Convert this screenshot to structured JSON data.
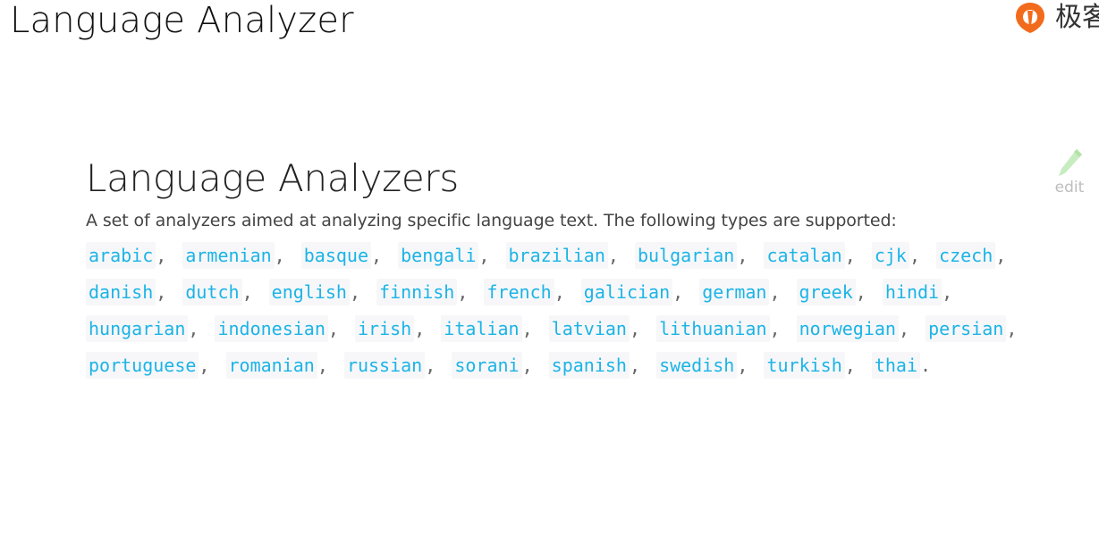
{
  "slide": {
    "title": "Language Analyzer"
  },
  "brand": {
    "logo_icon": "geekbang-logo-icon",
    "text": "极客",
    "accent": "#f26b1d"
  },
  "doc": {
    "heading": "Language Analyzers",
    "description": "A set of analyzers aimed at analyzing specific language text. The following types are supported:",
    "languages": [
      "arabic",
      "armenian",
      "basque",
      "bengali",
      "brazilian",
      "bulgarian",
      "catalan",
      "cjk",
      "czech",
      "danish",
      "dutch",
      "english",
      "finnish",
      "french",
      "galician",
      "german",
      "greek",
      "hindi",
      "hungarian",
      "indonesian",
      "irish",
      "italian",
      "latvian",
      "lithuanian",
      "norwegian",
      "persian",
      "portuguese",
      "romanian",
      "russian",
      "sorani",
      "spanish",
      "swedish",
      "turkish",
      "thai"
    ],
    "separator": ",",
    "terminator": ".",
    "code_color": "#1cb4e6"
  },
  "edit": {
    "icon": "pencil-icon",
    "label": "edit"
  }
}
